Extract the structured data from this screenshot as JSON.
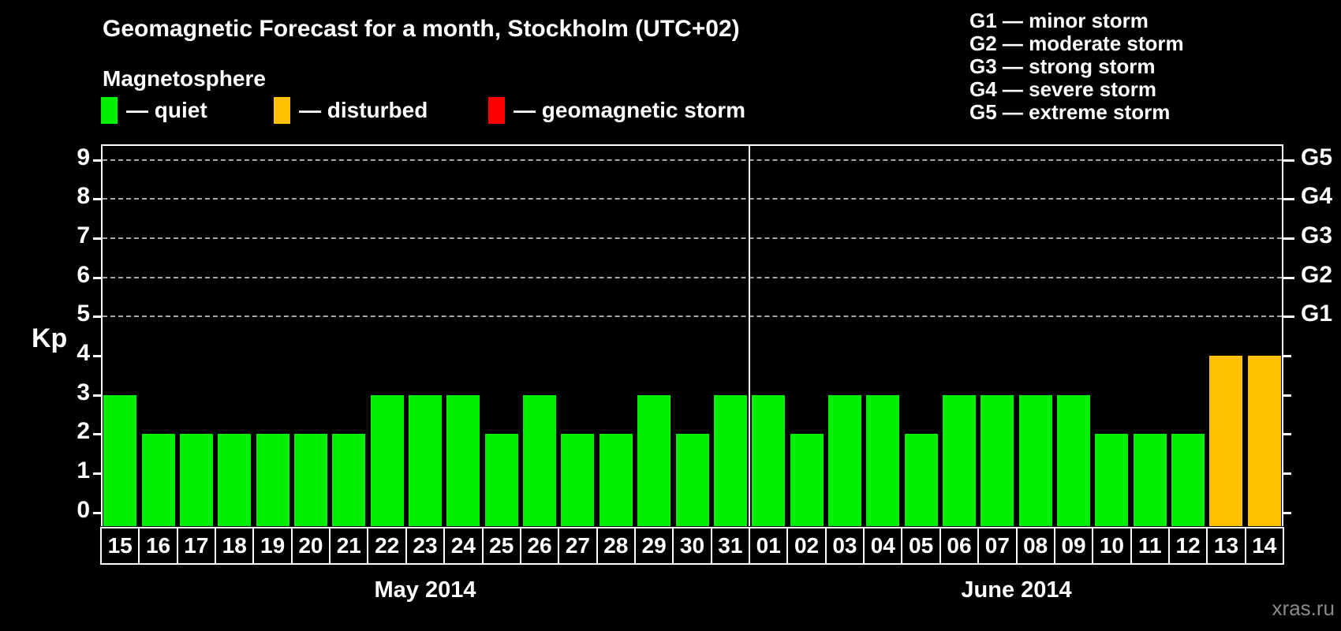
{
  "header": {
    "title": "Geomagnetic Forecast for a month, Stockholm (UTC+02)",
    "subtitle": "Magnetosphere",
    "legend": [
      {
        "label": "— quiet",
        "status": "quiet",
        "color": "#00ee00"
      },
      {
        "label": "— disturbed",
        "status": "disturbed",
        "color": "#ffc000"
      },
      {
        "label": "— geomagnetic storm",
        "status": "storm",
        "color": "#ff0000"
      }
    ]
  },
  "g_legend": [
    "G1 — minor storm",
    "G2 — moderate storm",
    "G3 — strong storm",
    "G4 — severe storm",
    "G5 — extreme storm"
  ],
  "chart_data": {
    "type": "bar",
    "title": "Geomagnetic Forecast for a month, Stockholm (UTC+02)",
    "ylabel": "Kp",
    "ylim": [
      -0.35,
      9.4
    ],
    "yticks": [
      0,
      1,
      2,
      3,
      4,
      5,
      6,
      7,
      8,
      9
    ],
    "gridlines_at": [
      5,
      6,
      7,
      8,
      9
    ],
    "grid": true,
    "legend_position": "top-right",
    "right_axis_labels": [
      {
        "kp": 5,
        "label": "G1"
      },
      {
        "kp": 6,
        "label": "G2"
      },
      {
        "kp": 7,
        "label": "G3"
      },
      {
        "kp": 8,
        "label": "G4"
      },
      {
        "kp": 9,
        "label": "G5"
      }
    ],
    "status_colors": {
      "quiet": "#00ee00",
      "disturbed": "#ffc000",
      "storm": "#ff0000"
    },
    "months": [
      {
        "label": "May 2014",
        "days": [
          {
            "day": "15",
            "kp": 3,
            "status": "quiet"
          },
          {
            "day": "16",
            "kp": 2,
            "status": "quiet"
          },
          {
            "day": "17",
            "kp": 2,
            "status": "quiet"
          },
          {
            "day": "18",
            "kp": 2,
            "status": "quiet"
          },
          {
            "day": "19",
            "kp": 2,
            "status": "quiet"
          },
          {
            "day": "20",
            "kp": 2,
            "status": "quiet"
          },
          {
            "day": "21",
            "kp": 2,
            "status": "quiet"
          },
          {
            "day": "22",
            "kp": 3,
            "status": "quiet"
          },
          {
            "day": "23",
            "kp": 3,
            "status": "quiet"
          },
          {
            "day": "24",
            "kp": 3,
            "status": "quiet"
          },
          {
            "day": "25",
            "kp": 2,
            "status": "quiet"
          },
          {
            "day": "26",
            "kp": 3,
            "status": "quiet"
          },
          {
            "day": "27",
            "kp": 2,
            "status": "quiet"
          },
          {
            "day": "28",
            "kp": 2,
            "status": "quiet"
          },
          {
            "day": "29",
            "kp": 3,
            "status": "quiet"
          },
          {
            "day": "30",
            "kp": 2,
            "status": "quiet"
          },
          {
            "day": "31",
            "kp": 3,
            "status": "quiet"
          }
        ]
      },
      {
        "label": "June 2014",
        "days": [
          {
            "day": "01",
            "kp": 3,
            "status": "quiet"
          },
          {
            "day": "02",
            "kp": 2,
            "status": "quiet"
          },
          {
            "day": "03",
            "kp": 3,
            "status": "quiet"
          },
          {
            "day": "04",
            "kp": 3,
            "status": "quiet"
          },
          {
            "day": "05",
            "kp": 2,
            "status": "quiet"
          },
          {
            "day": "06",
            "kp": 3,
            "status": "quiet"
          },
          {
            "day": "07",
            "kp": 3,
            "status": "quiet"
          },
          {
            "day": "08",
            "kp": 3,
            "status": "quiet"
          },
          {
            "day": "09",
            "kp": 3,
            "status": "quiet"
          },
          {
            "day": "10",
            "kp": 2,
            "status": "quiet"
          },
          {
            "day": "11",
            "kp": 2,
            "status": "quiet"
          },
          {
            "day": "12",
            "kp": 2,
            "status": "quiet"
          },
          {
            "day": "13",
            "kp": 4,
            "status": "disturbed"
          },
          {
            "day": "14",
            "kp": 4,
            "status": "disturbed"
          }
        ]
      }
    ]
  },
  "watermark": "xras.ru"
}
